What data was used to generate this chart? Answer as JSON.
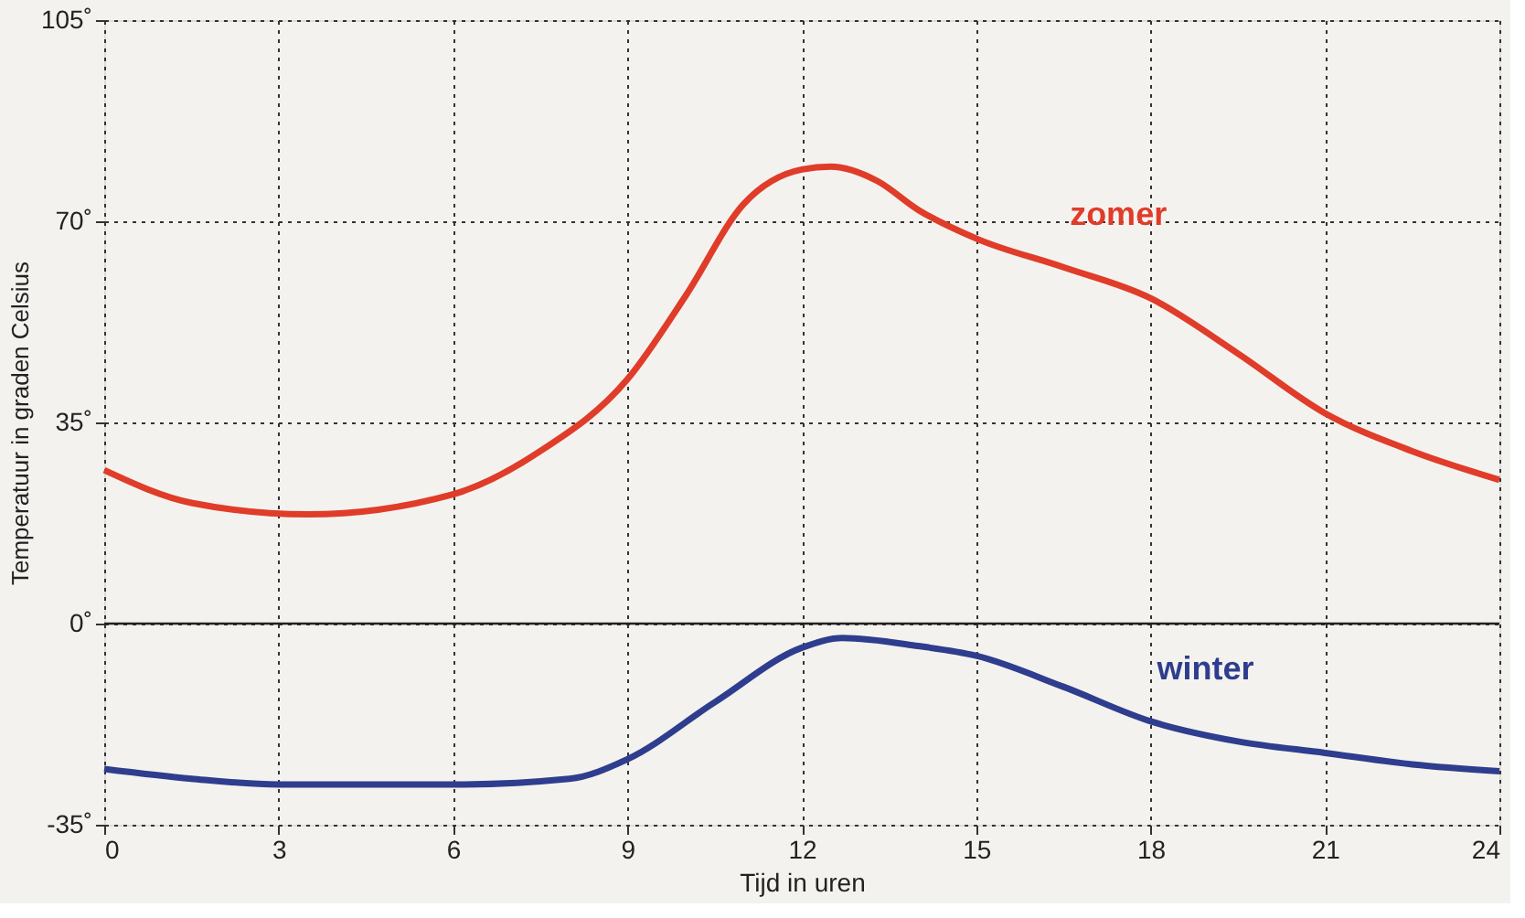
{
  "chart_data": {
    "type": "line",
    "xlabel": "Tijd in uren",
    "ylabel": "Temperatuur in graden Celsius",
    "xlim": [
      0,
      24
    ],
    "xticks": [
      0,
      3,
      6,
      9,
      12,
      15,
      18,
      21,
      24
    ],
    "ylim": [
      -35,
      105
    ],
    "yticks": [
      {
        "value": -35,
        "label": "-35˚"
      },
      {
        "value": 0,
        "label": "0˚"
      },
      {
        "value": 35,
        "label": "35˚"
      },
      {
        "value": 70,
        "label": "70˚"
      },
      {
        "value": 105,
        "label": "105˚"
      }
    ],
    "grid": true,
    "marker": "none",
    "line_style": "solid",
    "ref_lines": [
      {
        "axis": "y",
        "value": 0,
        "label": null,
        "color": "#222222",
        "line_style": "solid"
      }
    ],
    "series": [
      {
        "name": "zomer",
        "color": "#e03c2a",
        "x": [
          0,
          1.5,
          3.5,
          6,
          7.5,
          9,
          10,
          11,
          12,
          12.5,
          13.3,
          14,
          15,
          16.5,
          18,
          19.5,
          21,
          22.5,
          24
        ],
        "values": [
          26.7,
          21,
          19,
          22.5,
          30,
          42.5,
          57,
          73,
          79,
          79.5,
          77,
          72,
          67,
          62,
          56.6,
          47,
          36.6,
          30,
          25
        ]
      },
      {
        "name": "winter",
        "color": "#2e3d8e",
        "x": [
          0,
          1.5,
          3,
          6,
          8,
          9,
          10.5,
          12,
          12.7,
          14,
          15,
          16.5,
          18,
          19.5,
          21,
          22.5,
          24
        ],
        "values": [
          -25.3,
          -27,
          -28,
          -28,
          -27,
          -23.6,
          -13.7,
          -4.2,
          -2.5,
          -3.9,
          -5.6,
          -11,
          -17,
          -20.5,
          -22.5,
          -24.5,
          -25.7
        ]
      }
    ]
  }
}
